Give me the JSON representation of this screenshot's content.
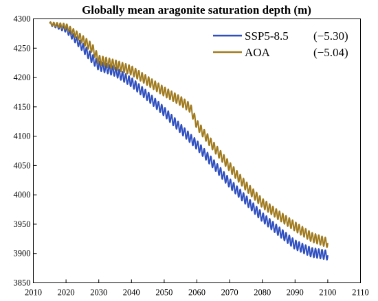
{
  "chart_data": {
    "type": "line",
    "title": "Globally mean aragonite saturation depth (m)",
    "xlabel": "",
    "ylabel": "",
    "xlim": [
      2010,
      2110
    ],
    "ylim": [
      3850,
      4300
    ],
    "x_ticks": [
      2010,
      2020,
      2030,
      2040,
      2050,
      2060,
      2070,
      2080,
      2090,
      2100,
      2110
    ],
    "y_ticks": [
      3850,
      3900,
      3950,
      4000,
      4050,
      4100,
      4150,
      4200,
      4250,
      4300
    ],
    "grid": false,
    "legend_position": "top-right",
    "series": [
      {
        "name": "SSP5-8.5",
        "trend": "(−5.30)",
        "color": "#2f4fbf",
        "seasonal_amplitude": 8,
        "x": [
          2015,
          2020,
          2025,
          2028,
          2030,
          2035,
          2040,
          2045,
          2050,
          2055,
          2060,
          2065,
          2070,
          2075,
          2080,
          2085,
          2090,
          2095,
          2100
        ],
        "values": [
          4292,
          4282,
          4252,
          4232,
          4220,
          4210,
          4192,
          4168,
          4142,
          4113,
          4085,
          4053,
          4020,
          3991,
          3962,
          3938,
          3915,
          3902,
          3897
        ]
      },
      {
        "name": "AOA",
        "trend": "(−5.04)",
        "color": "#a07a1e",
        "seasonal_amplitude": 8,
        "x": [
          2015,
          2020,
          2025,
          2028,
          2030,
          2035,
          2040,
          2045,
          2050,
          2055,
          2058,
          2060,
          2065,
          2070,
          2075,
          2080,
          2085,
          2090,
          2095,
          2100
        ],
        "values": [
          4292,
          4287,
          4265,
          4250,
          4230,
          4222,
          4212,
          4194,
          4176,
          4160,
          4148,
          4120,
          4083,
          4048,
          4015,
          3986,
          3965,
          3946,
          3928,
          3918
        ]
      }
    ]
  }
}
